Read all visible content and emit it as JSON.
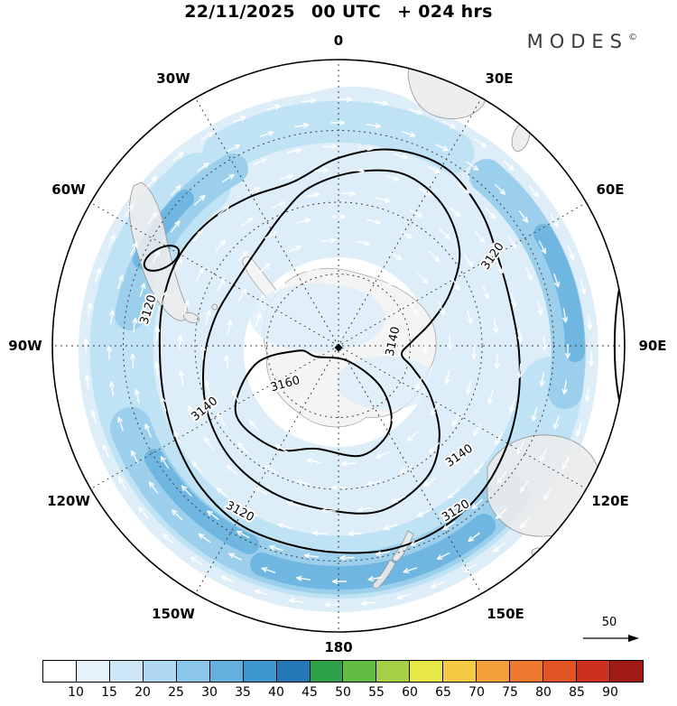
{
  "header": {
    "date": "22/11/2025",
    "time": "00 UTC",
    "lead": "+ 024 hrs",
    "brand": "MODES",
    "brand_mark": "©"
  },
  "map": {
    "longitude_labels": [
      "0",
      "30E",
      "60E",
      "90E",
      "120E",
      "150E",
      "180",
      "150W",
      "120W",
      "90W",
      "60W",
      "30W"
    ]
  },
  "chart_data": {
    "type": "contour-map",
    "title": "22/11/2025 00 UTC + 024 hrs",
    "projection": "southern hemisphere polar stereographic",
    "valid_time": "22/11/2025 00 UTC",
    "forecast_lead": "+ 024 hrs",
    "contours": [
      {
        "level": "3120"
      },
      {
        "level": "3140"
      },
      {
        "level": "3160"
      }
    ],
    "contour_interval": 20,
    "longitude_ticks": [
      "0",
      "30E",
      "60E",
      "90E",
      "120E",
      "150E",
      "180",
      "150W",
      "120W",
      "90W",
      "60W",
      "30W"
    ],
    "colorbar": {
      "tick_labels": [
        "10",
        "15",
        "20",
        "25",
        "30",
        "35",
        "40",
        "45",
        "50",
        "55",
        "60",
        "65",
        "70",
        "75",
        "80",
        "85",
        "90"
      ],
      "colors": [
        "#ffffff",
        "#e6f3fb",
        "#cde7f6",
        "#aed9f0",
        "#8ac7e8",
        "#62b0dd",
        "#3e97cf",
        "#2478b6",
        "#2fa148",
        "#63bc46",
        "#a5cf44",
        "#e8e84a",
        "#f6ca45",
        "#f5a03b",
        "#ef7a2e",
        "#e35425",
        "#cf2f1f",
        "#a01a17"
      ]
    },
    "wind_reference": "50"
  }
}
